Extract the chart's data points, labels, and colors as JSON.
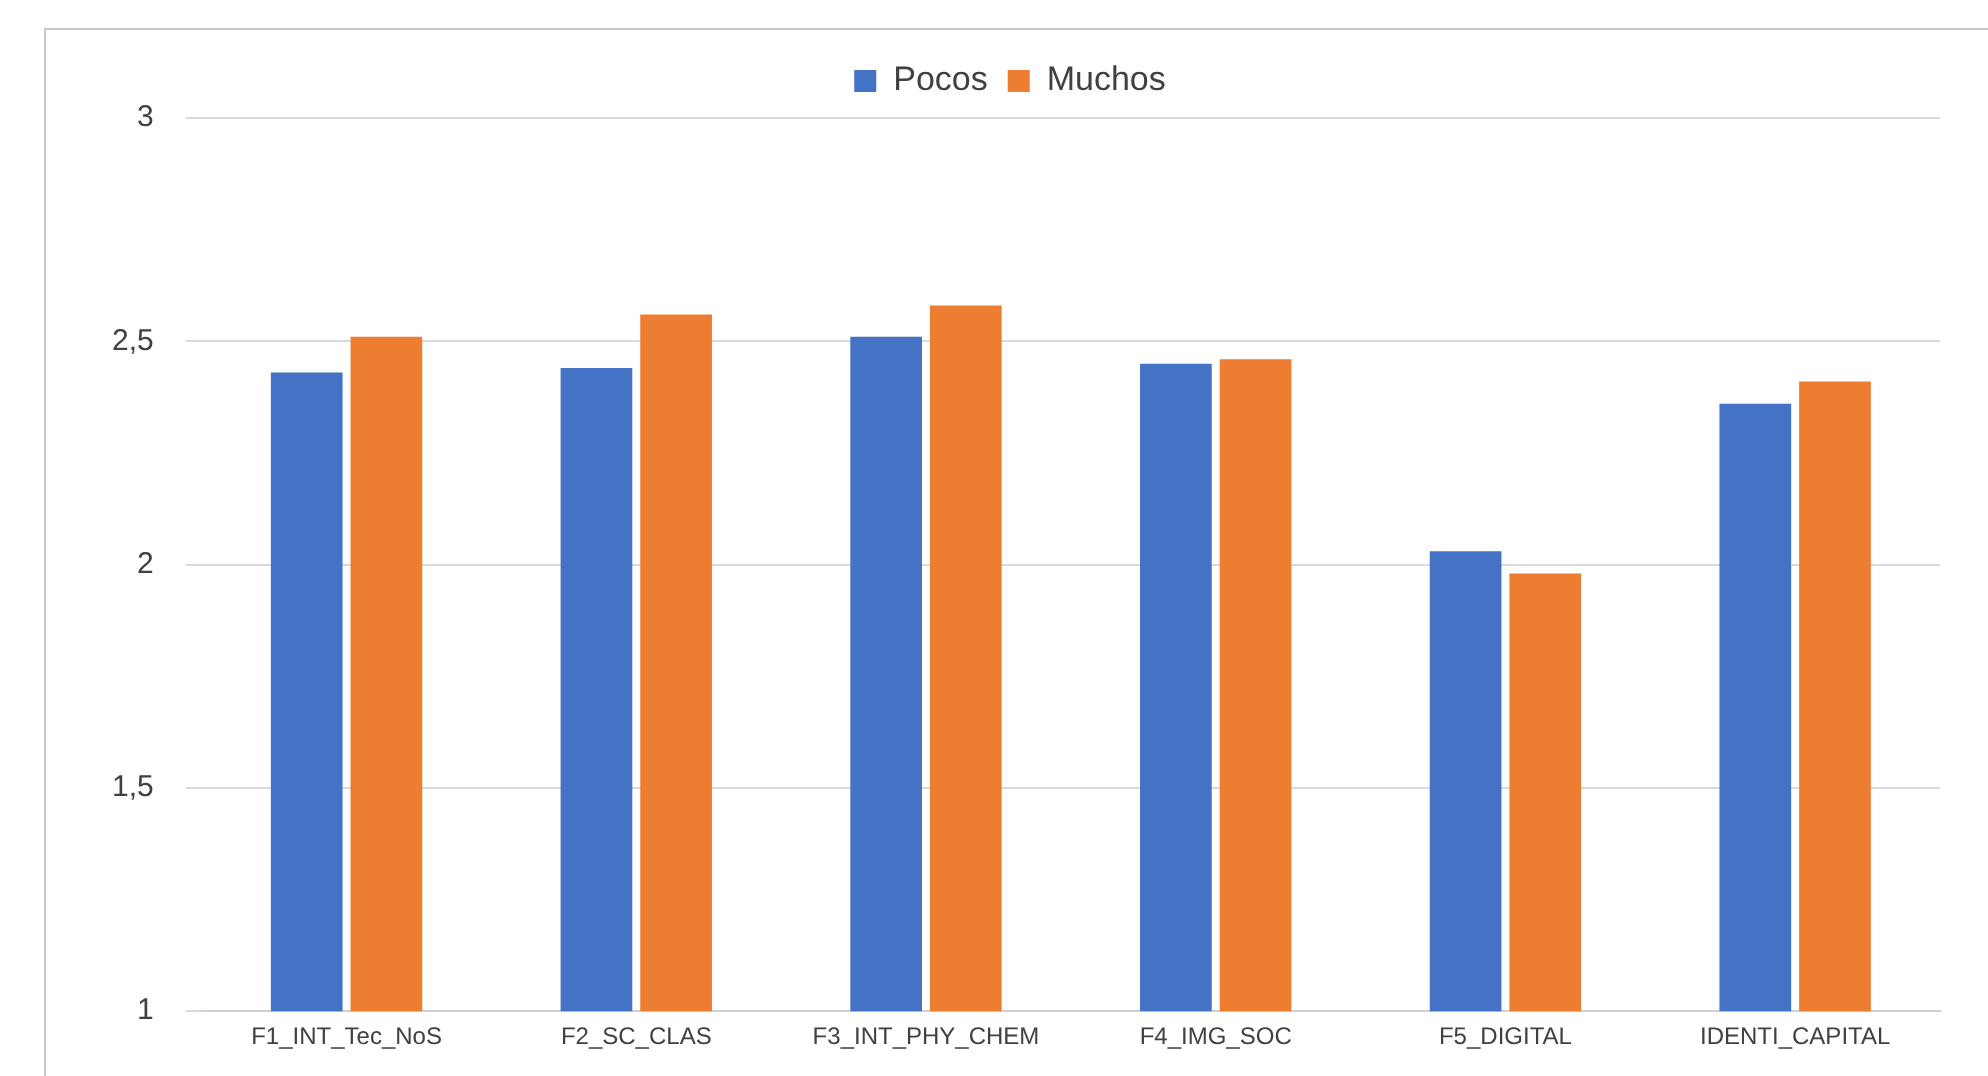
{
  "chart_data": {
    "type": "bar",
    "categories": [
      "F1_INT_Tec_NoS",
      "F2_SC_CLAS",
      "F3_INT_PHY_CHEM",
      "F4_IMG_SOC",
      "F5_DIGITAL",
      "IDENTI_CAPITAL"
    ],
    "series": [
      {
        "name": "Pocos",
        "color": "#4472c4",
        "values": [
          2.43,
          2.44,
          2.51,
          2.45,
          2.03,
          2.36
        ]
      },
      {
        "name": "Muchos",
        "color": "#ed7d31",
        "values": [
          2.51,
          2.56,
          2.58,
          2.46,
          1.98,
          2.41
        ]
      }
    ],
    "ylim": [
      1,
      3
    ],
    "yticks": [
      1,
      {
        "value": 1.5,
        "label": "1,5"
      },
      2,
      {
        "value": 2.5,
        "label": "2,5"
      },
      3
    ],
    "grid": "y",
    "legend": "top"
  }
}
